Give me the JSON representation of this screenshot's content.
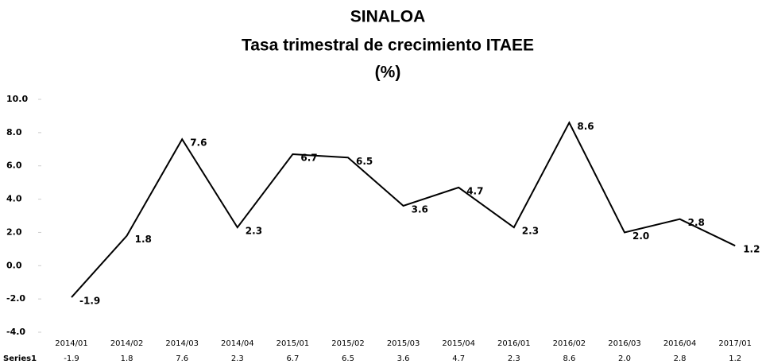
{
  "chart_data": {
    "type": "line",
    "title": [
      "SINALOA",
      "Tasa  trimestral de crecimiento ITAEE",
      "(%)"
    ],
    "categories": [
      "2014/01",
      "2014/02",
      "2014/03",
      "2014/04",
      "2015/01",
      "2015/02",
      "2015/03",
      "2015/04",
      "2016/01",
      "2016/02",
      "2016/03",
      "2016/04",
      "2017/01"
    ],
    "series": [
      {
        "name": "Series1",
        "color": "#000000",
        "values": [
          -1.9,
          1.8,
          7.6,
          2.3,
          6.7,
          6.5,
          3.6,
          4.7,
          2.3,
          8.6,
          2.0,
          2.8,
          1.2
        ],
        "value_labels": [
          "-1.9",
          "1.8",
          "7.6",
          "2.3",
          "6.7",
          "6.5",
          "3.6",
          "4.7",
          "2.3",
          "8.6",
          "2.0",
          "2.8",
          "1.2"
        ]
      }
    ],
    "ylim": [
      -4,
      10
    ],
    "yticks": [
      {
        "value": -4,
        "label": "-4.0"
      },
      {
        "value": -2,
        "label": "-2.0"
      },
      {
        "value": 0,
        "label": "0.0"
      },
      {
        "value": 2,
        "label": "2.0"
      },
      {
        "value": 4,
        "label": "4.0"
      },
      {
        "value": 6,
        "label": "6.0"
      },
      {
        "value": 8,
        "label": "8.0"
      },
      {
        "value": 10,
        "label": "10.0"
      }
    ],
    "grid": false
  }
}
